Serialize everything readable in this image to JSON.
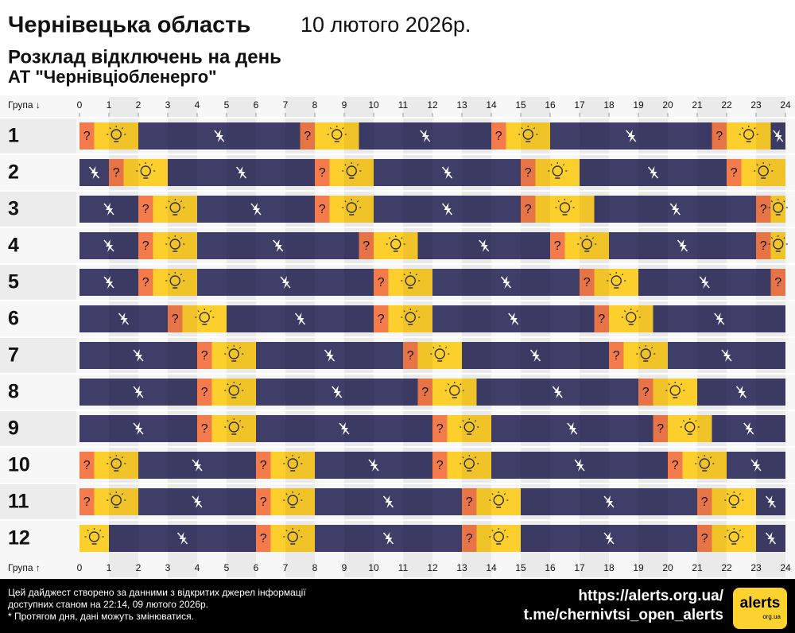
{
  "chart_data": {
    "type": "schedule",
    "title": "Чернівецька область",
    "date": "10 лютого 2026р.",
    "subtitle": "Розклад відключень на день",
    "company": "АТ \"Чернівціобленерго\"",
    "group_header_top": "Група ↓",
    "group_header_bottom": "Група ↑",
    "maybe_label": "?",
    "xlim": [
      0,
      24
    ],
    "xticks": [
      0,
      1,
      2,
      3,
      4,
      5,
      6,
      7,
      8,
      9,
      10,
      11,
      12,
      13,
      14,
      15,
      16,
      17,
      18,
      19,
      20,
      21,
      22,
      23,
      24
    ],
    "state_colors": {
      "off": "#3e3e68",
      "maybe": "#f47b4b",
      "on": "#fdcf2c"
    },
    "categories": [
      "1",
      "2",
      "3",
      "4",
      "5",
      "6",
      "7",
      "8",
      "9",
      "10",
      "11",
      "12"
    ],
    "groups": [
      {
        "segments": [
          [
            0,
            0.5,
            "maybe"
          ],
          [
            0.5,
            2,
            "on"
          ],
          [
            2,
            7.5,
            "off"
          ],
          [
            7.5,
            8,
            "maybe"
          ],
          [
            8,
            9.5,
            "on"
          ],
          [
            9.5,
            14,
            "off"
          ],
          [
            14,
            14.5,
            "maybe"
          ],
          [
            14.5,
            16,
            "on"
          ],
          [
            16,
            21.5,
            "off"
          ],
          [
            21.5,
            22,
            "maybe"
          ],
          [
            22,
            23.5,
            "on"
          ],
          [
            23.5,
            24,
            "off"
          ]
        ]
      },
      {
        "segments": [
          [
            0,
            1,
            "off"
          ],
          [
            1,
            1.5,
            "maybe"
          ],
          [
            1.5,
            3,
            "on"
          ],
          [
            3,
            8,
            "off"
          ],
          [
            8,
            8.5,
            "maybe"
          ],
          [
            8.5,
            10,
            "on"
          ],
          [
            10,
            15,
            "off"
          ],
          [
            15,
            15.5,
            "maybe"
          ],
          [
            15.5,
            17,
            "on"
          ],
          [
            17,
            22,
            "off"
          ],
          [
            22,
            22.5,
            "maybe"
          ],
          [
            22.5,
            24,
            "on"
          ]
        ]
      },
      {
        "segments": [
          [
            0,
            2,
            "off"
          ],
          [
            2,
            2.5,
            "maybe"
          ],
          [
            2.5,
            4,
            "on"
          ],
          [
            4,
            8,
            "off"
          ],
          [
            8,
            8.5,
            "maybe"
          ],
          [
            8.5,
            10,
            "on"
          ],
          [
            10,
            15,
            "off"
          ],
          [
            15,
            15.5,
            "maybe"
          ],
          [
            15.5,
            17.5,
            "on"
          ],
          [
            17.5,
            23,
            "off"
          ],
          [
            23,
            23.5,
            "maybe"
          ],
          [
            23.5,
            24,
            "on"
          ]
        ]
      },
      {
        "segments": [
          [
            0,
            2,
            "off"
          ],
          [
            2,
            2.5,
            "maybe"
          ],
          [
            2.5,
            4,
            "on"
          ],
          [
            4,
            9.5,
            "off"
          ],
          [
            9.5,
            10,
            "maybe"
          ],
          [
            10,
            11.5,
            "on"
          ],
          [
            11.5,
            16,
            "off"
          ],
          [
            16,
            16.5,
            "maybe"
          ],
          [
            16.5,
            18,
            "on"
          ],
          [
            18,
            23,
            "off"
          ],
          [
            23,
            23.5,
            "maybe"
          ],
          [
            23.5,
            24,
            "on"
          ]
        ]
      },
      {
        "segments": [
          [
            0,
            2,
            "off"
          ],
          [
            2,
            2.5,
            "maybe"
          ],
          [
            2.5,
            4,
            "on"
          ],
          [
            4,
            10,
            "off"
          ],
          [
            10,
            10.5,
            "maybe"
          ],
          [
            10.5,
            12,
            "on"
          ],
          [
            12,
            17,
            "off"
          ],
          [
            17,
            17.5,
            "maybe"
          ],
          [
            17.5,
            19,
            "on"
          ],
          [
            19,
            23.5,
            "off"
          ],
          [
            23.5,
            24,
            "maybe"
          ]
        ]
      },
      {
        "segments": [
          [
            0,
            3,
            "off"
          ],
          [
            3,
            3.5,
            "maybe"
          ],
          [
            3.5,
            5,
            "on"
          ],
          [
            5,
            10,
            "off"
          ],
          [
            10,
            10.5,
            "maybe"
          ],
          [
            10.5,
            12,
            "on"
          ],
          [
            12,
            17.5,
            "off"
          ],
          [
            17.5,
            18,
            "maybe"
          ],
          [
            18,
            19.5,
            "on"
          ],
          [
            19.5,
            24,
            "off"
          ]
        ]
      },
      {
        "segments": [
          [
            0,
            4,
            "off"
          ],
          [
            4,
            4.5,
            "maybe"
          ],
          [
            4.5,
            6,
            "on"
          ],
          [
            6,
            11,
            "off"
          ],
          [
            11,
            11.5,
            "maybe"
          ],
          [
            11.5,
            13,
            "on"
          ],
          [
            13,
            18,
            "off"
          ],
          [
            18,
            18.5,
            "maybe"
          ],
          [
            18.5,
            20,
            "on"
          ],
          [
            20,
            24,
            "off"
          ]
        ]
      },
      {
        "segments": [
          [
            0,
            4,
            "off"
          ],
          [
            4,
            4.5,
            "maybe"
          ],
          [
            4.5,
            6,
            "on"
          ],
          [
            6,
            11.5,
            "off"
          ],
          [
            11.5,
            12,
            "maybe"
          ],
          [
            12,
            13.5,
            "on"
          ],
          [
            13.5,
            19,
            "off"
          ],
          [
            19,
            19.5,
            "maybe"
          ],
          [
            19.5,
            21,
            "on"
          ],
          [
            21,
            24,
            "off"
          ]
        ]
      },
      {
        "segments": [
          [
            0,
            4,
            "off"
          ],
          [
            4,
            4.5,
            "maybe"
          ],
          [
            4.5,
            6,
            "on"
          ],
          [
            6,
            12,
            "off"
          ],
          [
            12,
            12.5,
            "maybe"
          ],
          [
            12.5,
            14,
            "on"
          ],
          [
            14,
            19.5,
            "off"
          ],
          [
            19.5,
            20,
            "maybe"
          ],
          [
            20,
            21.5,
            "on"
          ],
          [
            21.5,
            24,
            "off"
          ]
        ]
      },
      {
        "segments": [
          [
            0,
            0.5,
            "maybe"
          ],
          [
            0.5,
            2,
            "on"
          ],
          [
            2,
            6,
            "off"
          ],
          [
            6,
            6.5,
            "maybe"
          ],
          [
            6.5,
            8,
            "on"
          ],
          [
            8,
            12,
            "off"
          ],
          [
            12,
            12.5,
            "maybe"
          ],
          [
            12.5,
            14,
            "on"
          ],
          [
            14,
            20,
            "off"
          ],
          [
            20,
            20.5,
            "maybe"
          ],
          [
            20.5,
            22,
            "on"
          ],
          [
            22,
            24,
            "off"
          ]
        ]
      },
      {
        "segments": [
          [
            0,
            0.5,
            "maybe"
          ],
          [
            0.5,
            2,
            "on"
          ],
          [
            2,
            6,
            "off"
          ],
          [
            6,
            6.5,
            "maybe"
          ],
          [
            6.5,
            8,
            "on"
          ],
          [
            8,
            13,
            "off"
          ],
          [
            13,
            13.5,
            "maybe"
          ],
          [
            13.5,
            15,
            "on"
          ],
          [
            15,
            21,
            "off"
          ],
          [
            21,
            21.5,
            "maybe"
          ],
          [
            21.5,
            23,
            "on"
          ],
          [
            23,
            24,
            "off"
          ]
        ]
      },
      {
        "segments": [
          [
            0,
            1,
            "on"
          ],
          [
            1,
            6,
            "off"
          ],
          [
            6,
            6.5,
            "maybe"
          ],
          [
            6.5,
            8,
            "on"
          ],
          [
            8,
            13,
            "off"
          ],
          [
            13,
            13.5,
            "maybe"
          ],
          [
            13.5,
            15,
            "on"
          ],
          [
            15,
            21,
            "off"
          ],
          [
            21,
            21.5,
            "maybe"
          ],
          [
            21.5,
            23,
            "on"
          ],
          [
            23,
            24,
            "off"
          ]
        ]
      }
    ],
    "footer": {
      "note_lines": [
        "Цей дайджест створено за данними з відкритих джерел інформації",
        "доступних станом на 22:14, 09 лютого 2026р.",
        "* Протягом дня, дані можуть змінюватися."
      ],
      "links": [
        "https://alerts.org.ua/",
        "t.me/chernivtsi_open_alerts"
      ],
      "logo": "alerts",
      "logo_sub": "org.ua"
    }
  }
}
